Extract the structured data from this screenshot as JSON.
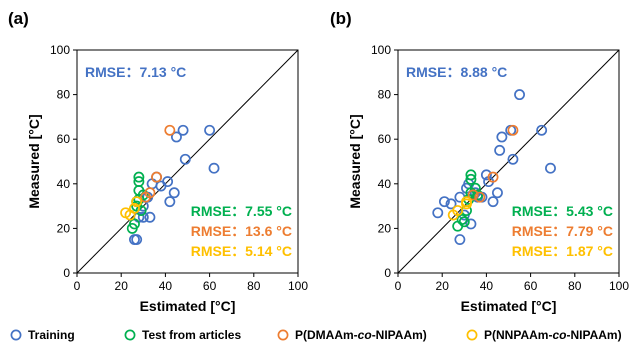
{
  "colors": {
    "Training": "#4472C4",
    "Test from articles": "#00B050",
    "P(DMAAm-co-NIPAAm)": "#ED7D31",
    "P(NNPAAm-co-NIPAAm)": "#FFC000"
  },
  "legend": {
    "position": "bottom",
    "items": [
      {
        "name": "Training",
        "parts": [
          {
            "t": "Training",
            "italic": false
          }
        ]
      },
      {
        "name": "Test from articles",
        "parts": [
          {
            "t": "Test from articles",
            "italic": false
          }
        ]
      },
      {
        "name": "P(DMAAm-co-NIPAAm)",
        "parts": [
          {
            "t": "P(DMAAm-",
            "italic": false
          },
          {
            "t": "co",
            "italic": true
          },
          {
            "t": "-NIPAAm)",
            "italic": false
          }
        ]
      },
      {
        "name": "P(NNPAAm-co-NIPAAm)",
        "parts": [
          {
            "t": "P(NNPAAm-",
            "italic": false
          },
          {
            "t": "co",
            "italic": true
          },
          {
            "t": "-NIPAAm)",
            "italic": false
          }
        ]
      }
    ]
  },
  "chart_data": [
    {
      "type": "scatter",
      "panel": "(a)",
      "xlabel": "Estimated [°C]",
      "ylabel": "Measured [°C]",
      "xlim": [
        0,
        100
      ],
      "ylim": [
        0,
        100
      ],
      "xticks": [
        0,
        20,
        40,
        60,
        80,
        100
      ],
      "yticks": [
        0,
        20,
        40,
        60,
        80,
        100
      ],
      "grid": false,
      "identity_line": true,
      "rmse": [
        {
          "series": "Training",
          "label": "RMSE：7.13 °C"
        },
        {
          "series": "Test from articles",
          "label": "RMSE：7.55 °C"
        },
        {
          "series": "P(DMAAm-co-NIPAAm)",
          "label": "RMSE：13.6 °C"
        },
        {
          "series": "P(NNPAAm-co-NIPAAm)",
          "label": "RMSE：5.14 °C"
        }
      ],
      "series": [
        {
          "name": "Training",
          "points": [
            [
              26,
              15
            ],
            [
              27,
              15
            ],
            [
              28,
              25
            ],
            [
              30,
              25
            ],
            [
              30,
              30
            ],
            [
              32,
              34
            ],
            [
              33,
              25
            ],
            [
              34,
              40
            ],
            [
              36,
              43
            ],
            [
              38,
              39
            ],
            [
              41,
              41
            ],
            [
              42,
              32
            ],
            [
              44,
              36
            ],
            [
              45,
              61
            ],
            [
              48,
              64
            ],
            [
              49,
              51
            ],
            [
              60,
              64
            ],
            [
              62,
              47
            ]
          ]
        },
        {
          "name": "Test from articles",
          "points": [
            [
              25,
              20
            ],
            [
              26,
              22
            ],
            [
              27,
              30
            ],
            [
              27,
              32
            ],
            [
              28,
              33
            ],
            [
              28,
              37
            ],
            [
              28,
              41
            ],
            [
              28,
              43
            ],
            [
              29,
              28
            ],
            [
              30,
              35
            ]
          ]
        },
        {
          "name": "P(DMAAm-co-NIPAAm)",
          "points": [
            [
              31,
              34
            ],
            [
              33,
              36
            ],
            [
              36,
              43
            ],
            [
              42,
              64
            ]
          ]
        },
        {
          "name": "P(NNPAAm-co-NIPAAm)",
          "points": [
            [
              22,
              27
            ],
            [
              24,
              26
            ],
            [
              26,
              29
            ],
            [
              27,
              32
            ]
          ]
        }
      ]
    },
    {
      "type": "scatter",
      "panel": "(b)",
      "xlabel": "Estimated [°C]",
      "ylabel": "Measured [°C]",
      "xlim": [
        0,
        100
      ],
      "ylim": [
        0,
        100
      ],
      "xticks": [
        0,
        20,
        40,
        60,
        80,
        100
      ],
      "yticks": [
        0,
        20,
        40,
        60,
        80,
        100
      ],
      "grid": false,
      "identity_line": true,
      "rmse": [
        {
          "series": "Training",
          "label": "RMSE：8.88 °C"
        },
        {
          "series": "Test from articles",
          "label": "RMSE：5.43 °C"
        },
        {
          "series": "P(DMAAm-co-NIPAAm)",
          "label": "RMSE：7.79 °C"
        },
        {
          "series": "P(NNPAAm-co-NIPAAm)",
          "label": "RMSE：1.87 °C"
        }
      ],
      "series": [
        {
          "name": "Training",
          "points": [
            [
              18,
              27
            ],
            [
              21,
              32
            ],
            [
              24,
              31
            ],
            [
              28,
              15
            ],
            [
              28,
              34
            ],
            [
              30,
              26
            ],
            [
              31,
              38
            ],
            [
              32,
              40
            ],
            [
              33,
              22
            ],
            [
              35,
              36
            ],
            [
              36,
              34
            ],
            [
              38,
              34
            ],
            [
              40,
              44
            ],
            [
              41,
              41
            ],
            [
              43,
              32
            ],
            [
              45,
              36
            ],
            [
              46,
              55
            ],
            [
              47,
              61
            ],
            [
              51,
              64
            ],
            [
              52,
              51
            ],
            [
              55,
              80
            ],
            [
              65,
              64
            ],
            [
              69,
              47
            ]
          ]
        },
        {
          "name": "Test from articles",
          "points": [
            [
              27,
              21
            ],
            [
              29,
              24
            ],
            [
              30,
              23
            ],
            [
              31,
              28
            ],
            [
              32,
              33
            ],
            [
              33,
              36
            ],
            [
              33,
              42
            ],
            [
              33,
              44
            ],
            [
              35,
              38
            ],
            [
              36,
              35
            ]
          ]
        },
        {
          "name": "P(DMAAm-co-NIPAAm)",
          "points": [
            [
              34,
              35
            ],
            [
              37,
              34
            ],
            [
              43,
              43
            ],
            [
              52,
              64
            ]
          ]
        },
        {
          "name": "P(NNPAAm-co-NIPAAm)",
          "points": [
            [
              25,
              26
            ],
            [
              27,
              28
            ],
            [
              31,
              32
            ],
            [
              31,
              31
            ]
          ]
        }
      ]
    }
  ]
}
